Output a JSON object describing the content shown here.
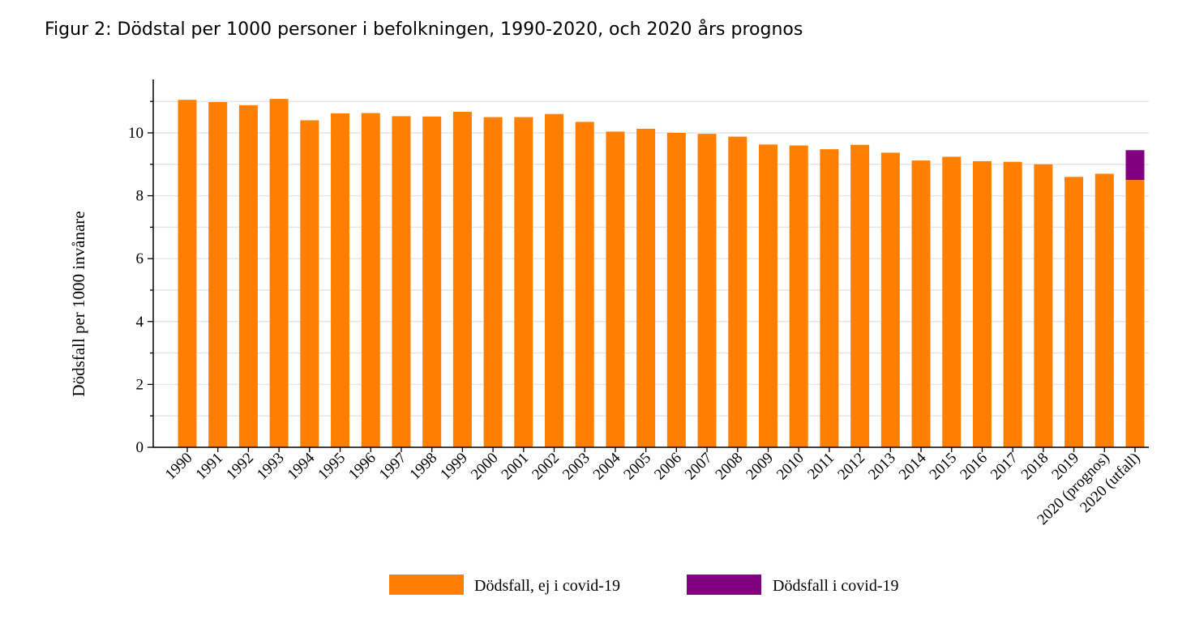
{
  "page": {
    "title": "Figur 2: Dödstal per 1000 personer i befolkningen, 1990-2020, och 2020 års prognos"
  },
  "chart_data": {
    "type": "bar",
    "stacked": true,
    "ylabel": "Dödsfall per 1000 invånare",
    "xlabel": "",
    "ylim": [
      0,
      11.7
    ],
    "yticks": [
      0,
      2,
      4,
      6,
      8,
      10
    ],
    "grid": true,
    "legend_position": "bottom",
    "categories": [
      "1990",
      "1991",
      "1992",
      "1993",
      "1994",
      "1995",
      "1996",
      "1997",
      "1998",
      "1999",
      "2000",
      "2001",
      "2002",
      "2003",
      "2004",
      "2005",
      "2006",
      "2007",
      "2008",
      "2009",
      "2010",
      "2011",
      "2012",
      "2013",
      "2014",
      "2015",
      "2016",
      "2017",
      "2018",
      "2019",
      "2020 (prognos)",
      "2020 (utfall)"
    ],
    "series": [
      {
        "name": "Dödsfall, ej i covid-19",
        "color": "#ff8000",
        "values": [
          11.05,
          10.98,
          10.88,
          11.08,
          10.4,
          10.62,
          10.63,
          10.53,
          10.52,
          10.67,
          10.5,
          10.5,
          10.6,
          10.35,
          10.04,
          10.13,
          10.0,
          9.97,
          9.88,
          9.63,
          9.6,
          9.48,
          9.62,
          9.37,
          9.12,
          9.24,
          9.1,
          9.08,
          9.0,
          8.6,
          8.7,
          8.5
        ]
      },
      {
        "name": "Dödsfall i covid-19",
        "color": "#800080",
        "values": [
          0,
          0,
          0,
          0,
          0,
          0,
          0,
          0,
          0,
          0,
          0,
          0,
          0,
          0,
          0,
          0,
          0,
          0,
          0,
          0,
          0,
          0,
          0,
          0,
          0,
          0,
          0,
          0,
          0,
          0,
          0,
          0.95
        ]
      }
    ]
  }
}
